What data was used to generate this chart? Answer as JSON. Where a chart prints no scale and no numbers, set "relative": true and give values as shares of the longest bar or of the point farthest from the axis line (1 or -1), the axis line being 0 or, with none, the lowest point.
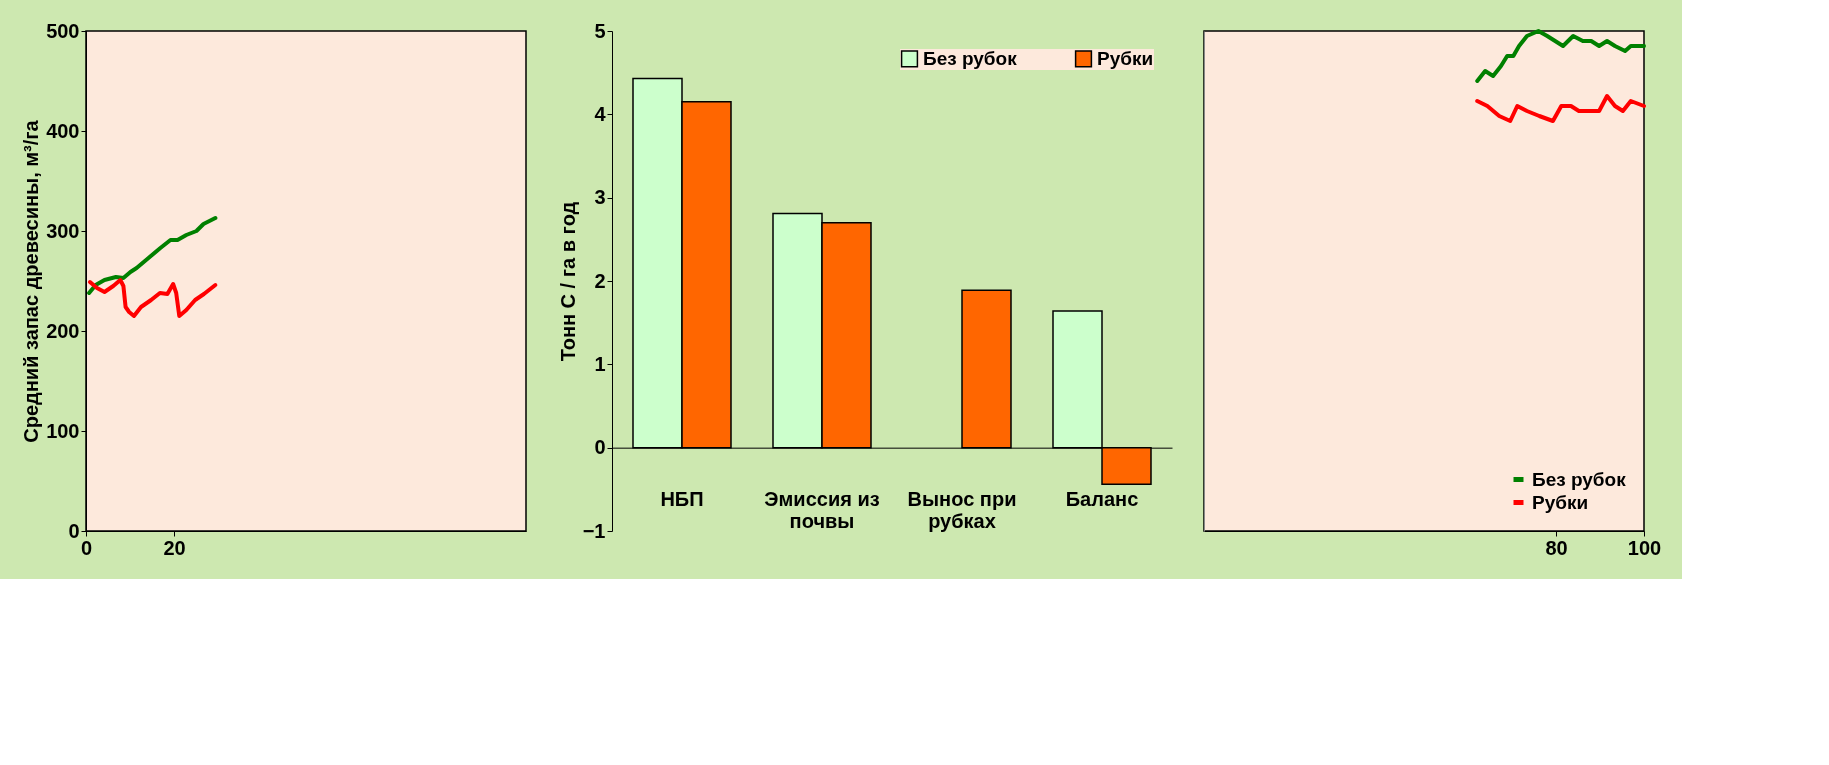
{
  "chart_data": [
    {
      "type": "line",
      "ylabel": "Средний запас древесины, м³/га",
      "xlim": [
        0,
        100
      ],
      "xticks": [
        0,
        20
      ],
      "ylim": [
        0,
        500
      ],
      "yticks": [
        0,
        100,
        200,
        300,
        400,
        500
      ],
      "grid": false,
      "legend": false,
      "series": [
        {
          "color": "#008000",
          "x": [
            0.7,
            2.2,
            4.2,
            6.8,
            8.5,
            10.1,
            11.5,
            14.2,
            16.9,
            19.2,
            20.8,
            22.8,
            25.1,
            26.7,
            29.4
          ],
          "values": [
            238,
            246,
            251,
            254,
            253,
            259,
            263,
            273,
            283,
            291,
            291,
            296,
            300,
            307,
            313
          ]
        },
        {
          "color": "#ff0000",
          "x": [
            0.9,
            2.5,
            4.2,
            6.2,
            7.8,
            8.5,
            9.0,
            9.8,
            10.9,
            12.5,
            14.8,
            16.8,
            18.5,
            19.8,
            20.5,
            21.2,
            22.8,
            24.8,
            26.8,
            29.4
          ],
          "values": [
            249,
            243,
            239,
            245,
            251,
            245,
            224,
            219,
            215,
            224,
            231,
            238,
            237,
            247,
            238,
            215,
            221,
            231,
            237,
            246
          ]
        }
      ]
    },
    {
      "type": "bar",
      "ylabel": "Тонн С / га в год",
      "categories": [
        "НБП",
        "Эмиссия из почвы",
        "Вынос при рубках",
        "Баланс"
      ],
      "ylim": [
        -1,
        5
      ],
      "yticks": [
        -1,
        0,
        1,
        2,
        3,
        4,
        5
      ],
      "grid": false,
      "legend": "top right",
      "series": [
        {
          "name": "Без  рубок",
          "color": "#ccffcc",
          "values": [
            4.43,
            2.81,
            null,
            1.64
          ]
        },
        {
          "name": "Рубки",
          "color": "#ff6600",
          "values": [
            4.15,
            2.7,
            1.89,
            -0.44
          ]
        }
      ]
    },
    {
      "type": "line",
      "relative": true,
      "xlim": [
        0,
        100
      ],
      "xticks": [
        80,
        100
      ],
      "grid": false,
      "legend": "bottom right",
      "series": [
        {
          "name": "Без рубок",
          "color": "#008000",
          "x": [
            62.1,
            63.9,
            65.7,
            67.5,
            68.9,
            70.3,
            71.6,
            73.4,
            76.0,
            78.0,
            79.8,
            81.6,
            83.9,
            86.1,
            88.0,
            89.8,
            91.6,
            93.4,
            95.7,
            97.0,
            100
          ],
          "values": [
            0.9,
            0.92,
            0.91,
            0.93,
            0.95,
            0.95,
            0.97,
            0.99,
            1,
            0.99,
            0.98,
            0.97,
            0.99,
            0.98,
            0.98,
            0.97,
            0.98,
            0.97,
            0.96,
            0.97,
            0.97
          ]
        },
        {
          "name": "Рубки",
          "color": "#ff0000",
          "x": [
            62.1,
            64.4,
            67.1,
            69.6,
            71.2,
            73.4,
            76.2,
            79.3,
            81.2,
            83.4,
            85.2,
            89.8,
            91.6,
            93.4,
            95.2,
            97.0,
            100
          ],
          "values": [
            0.86,
            0.85,
            0.83,
            0.82,
            0.85,
            0.84,
            0.83,
            0.82,
            0.85,
            0.85,
            0.84,
            0.84,
            0.87,
            0.85,
            0.84,
            0.86,
            0.85
          ]
        }
      ]
    }
  ]
}
